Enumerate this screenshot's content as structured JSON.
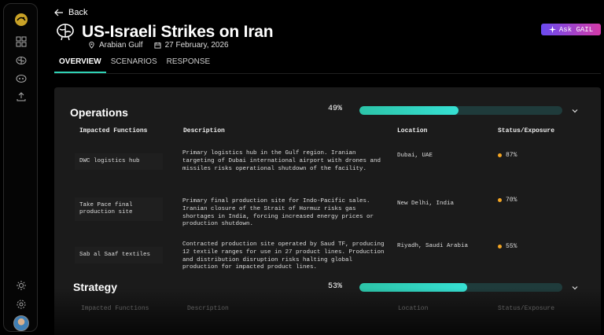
{
  "nav": {
    "back_label": "Back",
    "items": [
      "dashboard-icon",
      "brain-icon",
      "brain-alt-icon",
      "upload-icon"
    ],
    "bottom": [
      "sun-icon",
      "gear-icon"
    ]
  },
  "header": {
    "title": "US-Israeli Strikes on Iran",
    "location": "Arabian Gulf",
    "date": "27 February, 2026",
    "ask_label": "Ask GAIL"
  },
  "tabs": [
    {
      "label": "OVERVIEW",
      "active": true
    },
    {
      "label": "SCENARIOS",
      "active": false
    },
    {
      "label": "RESPONSE",
      "active": false
    }
  ],
  "operations": {
    "title": "Operations",
    "percent": "49%",
    "progress": 0.49,
    "columns": [
      "Impacted Functions",
      "Description",
      "Location",
      "Status/Exposure"
    ],
    "rows": [
      {
        "function": "DWC logistics hub",
        "description": "Primary logistics hub in the Gulf region. Iranian targeting of Dubai international airport with drones and missiles risks operational shutdown of the facility.",
        "location": "Dubai, UAE",
        "exposure": "87%"
      },
      {
        "function": "Take Pace final production site",
        "description": "Primary final production site for Indo-Pacific sales. Iranian closure of the Strait of Hormuz risks gas shortages in India, forcing increased energy prices or production shutdown.",
        "location": "New Delhi, India",
        "exposure": "70%"
      },
      {
        "function": "Sab al Saaf textiles",
        "description": "Contracted production site operated by Saud TF, producing 12 textile ranges for use in 27 product lines. Production and distribution disruption risks halting global production for impacted product lines.",
        "location": "Riyadh, Saudi Arabia",
        "exposure": "55%"
      }
    ]
  },
  "strategy": {
    "title": "Strategy",
    "percent": "53%",
    "progress": 0.53,
    "columns": [
      "Impacted Functions",
      "Description",
      "Location",
      "Status/Exposure"
    ]
  },
  "colors": {
    "accent": "#2fd2b5",
    "status": "#f5a623"
  }
}
